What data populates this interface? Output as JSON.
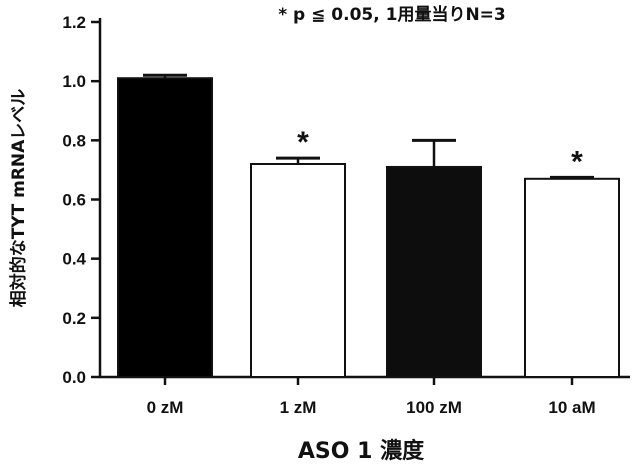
{
  "chart_data": {
    "type": "bar",
    "annotation": "* p ≦ 0.05, 1用量当りN=3",
    "xlabel": "ASO 1 濃度",
    "ylabel": "相対的なTYT mRNAレベル",
    "ylim": [
      0.0,
      1.2
    ],
    "yticks": [
      "0.0",
      "0.2",
      "0.4",
      "0.6",
      "0.8",
      "1.0",
      "1.2"
    ],
    "ytick_values": [
      0.0,
      0.2,
      0.4,
      0.6,
      0.8,
      1.0,
      1.2
    ],
    "categories": [
      "0 zM",
      "1 zM",
      "100 zM",
      "10 aM"
    ],
    "values": [
      1.01,
      0.72,
      0.71,
      0.67
    ],
    "errors": [
      0.01,
      0.02,
      0.09,
      0.005
    ],
    "significance": [
      "",
      "*",
      "",
      "*"
    ],
    "bar_fills": [
      "#000000",
      "#ffffff",
      "#0d0d0d",
      "#ffffff"
    ],
    "grid": false,
    "legend": "none"
  }
}
